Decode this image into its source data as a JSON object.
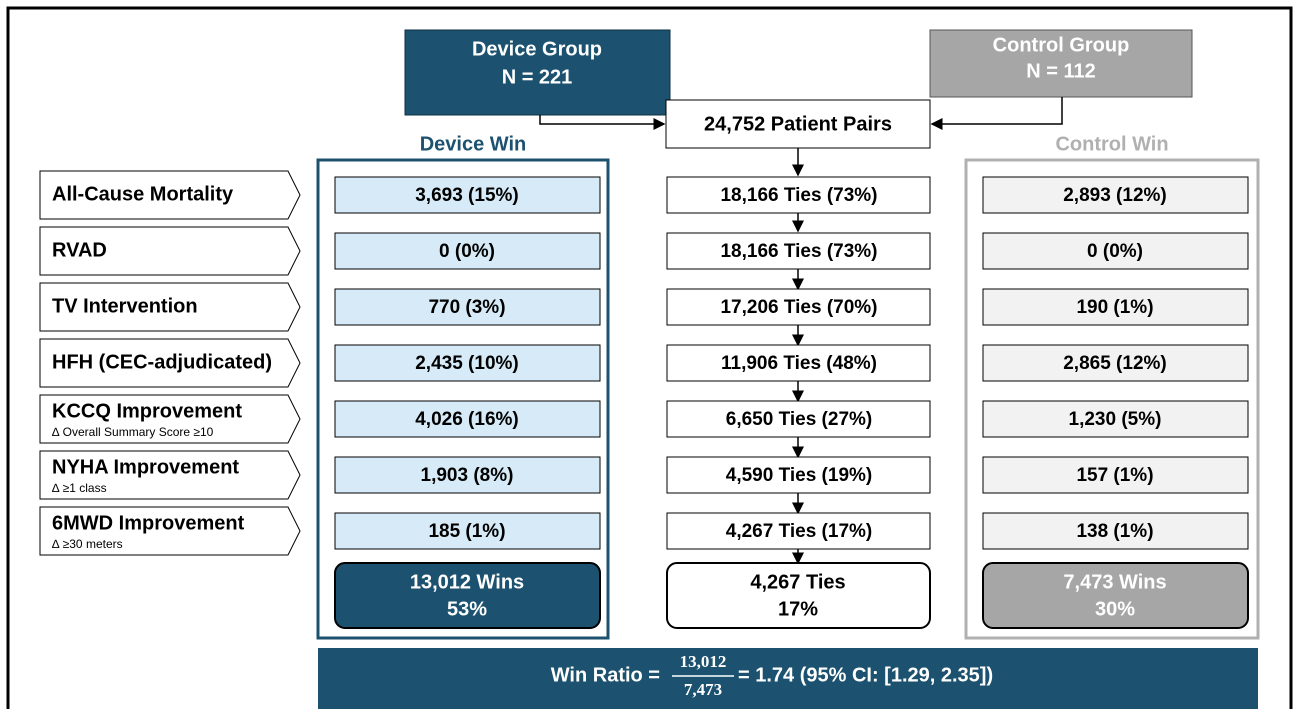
{
  "groups": {
    "device": {
      "title": "Device Group",
      "n": "N = 221"
    },
    "control": {
      "title": "Control Group",
      "n": "N = 112"
    }
  },
  "pairs": "24,752 Patient Pairs",
  "columns": {
    "device_win": "Device Win",
    "control_win": "Control Win"
  },
  "rows": [
    {
      "label": "All-Cause Mortality",
      "device": "3,693 (15%)",
      "ties": "18,166 Ties (73%)",
      "control": "2,893 (12%)"
    },
    {
      "label": "RVAD",
      "device": "0 (0%)",
      "ties": "18,166 Ties (73%)",
      "control": "0 (0%)"
    },
    {
      "label": "TV Intervention",
      "device": "770 (3%)",
      "ties": "17,206 Ties (70%)",
      "control": "190 (1%)"
    },
    {
      "label": "HFH (CEC-adjudicated)",
      "device": "2,435 (10%)",
      "ties": "11,906 Ties (48%)",
      "control": "2,865 (12%)"
    },
    {
      "label": "KCCQ Improvement",
      "sublabel": "∆ Overall Summary Score ≥10",
      "device": "4,026 (16%)",
      "ties": "6,650 Ties (27%)",
      "control": "1,230 (5%)"
    },
    {
      "label": "NYHA Improvement",
      "sublabel": "∆ ≥1 class",
      "device": "1,903 (8%)",
      "ties": "4,590 Ties (19%)",
      "control": "157 (1%)"
    },
    {
      "label": "6MWD Improvement",
      "sublabel": "∆ ≥30 meters",
      "device": "185 (1%)",
      "ties": "4,267 Ties (17%)",
      "control": "138 (1%)"
    }
  ],
  "totals": {
    "device": {
      "count": "13,012 Wins",
      "pct": "53%"
    },
    "ties": {
      "count": "4,267 Ties",
      "pct": "17%"
    },
    "control": {
      "count": "7,473 Wins",
      "pct": "30%"
    }
  },
  "win_ratio": {
    "label": "Win Ratio =",
    "numerator": "13,012",
    "denominator": "7,473",
    "result": "= 1.74 (95% CI:  [1.29, 2.35])"
  }
}
